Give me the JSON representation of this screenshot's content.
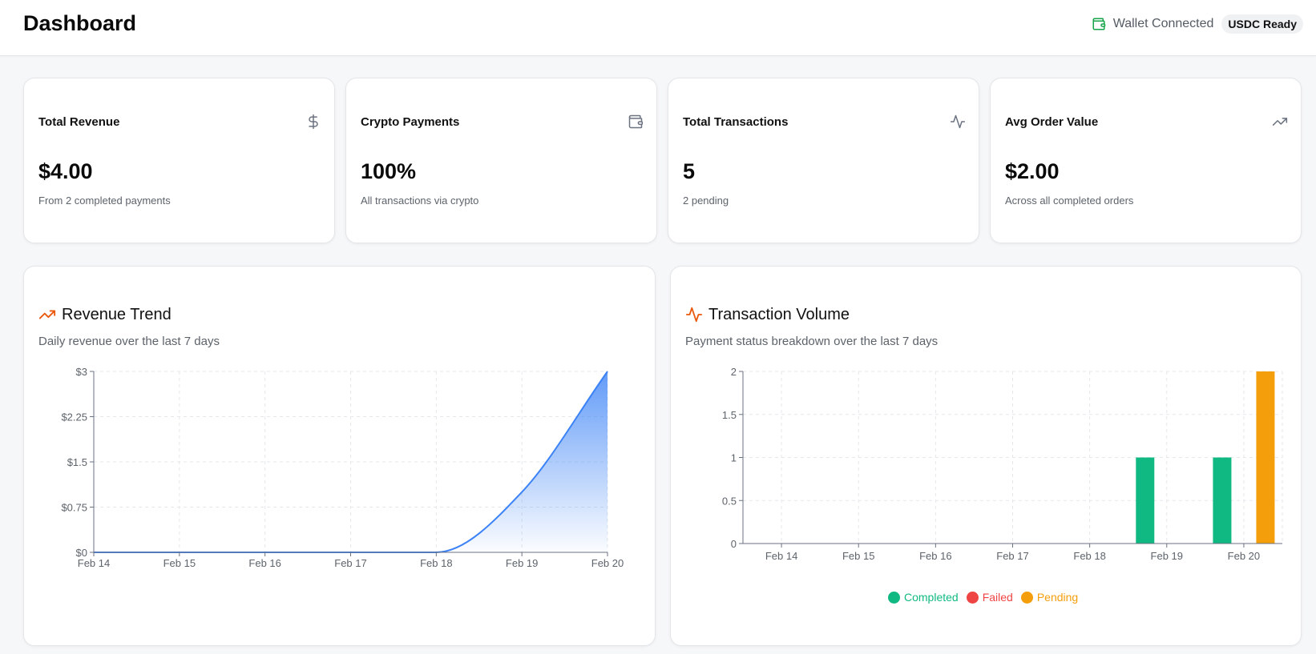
{
  "header": {
    "title": "Dashboard",
    "wallet_status": "Wallet Connected",
    "badge": "USDC Ready",
    "wallet_icon_color": "#16a34a"
  },
  "stats": [
    {
      "title": "Total Revenue",
      "value": "$4.00",
      "sub": "From 2 completed payments",
      "icon": "dollar-icon"
    },
    {
      "title": "Crypto Payments",
      "value": "100%",
      "sub": "All transactions via crypto",
      "icon": "wallet-icon"
    },
    {
      "title": "Total Transactions",
      "value": "5",
      "sub": "2 pending",
      "icon": "activity-icon"
    },
    {
      "title": "Avg Order Value",
      "value": "$2.00",
      "sub": "Across all completed orders",
      "icon": "trending-up-icon"
    }
  ],
  "revenue": {
    "title": "Revenue Trend",
    "subtitle": "Daily revenue over the last 7 days",
    "icon": "trending-up-icon",
    "accent": "#ea580c"
  },
  "volume": {
    "title": "Transaction Volume",
    "subtitle": "Payment status breakdown over the last 7 days",
    "icon": "activity-icon",
    "accent": "#ea580c"
  },
  "chart_data": [
    {
      "type": "area",
      "x": [
        "Feb 14",
        "Feb 15",
        "Feb 16",
        "Feb 17",
        "Feb 18",
        "Feb 19",
        "Feb 20"
      ],
      "series": [
        {
          "values": [
            0,
            0,
            0,
            0,
            0,
            1,
            3
          ]
        }
      ],
      "y_ticks": [
        "$0",
        "$0.75",
        "$1.5",
        "$2.25",
        "$3"
      ],
      "ylim": [
        0,
        3
      ],
      "grid": true,
      "color": "#3b82f6"
    },
    {
      "type": "bar",
      "categories": [
        "Feb 14",
        "Feb 15",
        "Feb 16",
        "Feb 17",
        "Feb 18",
        "Feb 19",
        "Feb 20"
      ],
      "series": [
        {
          "name": "Completed",
          "values": [
            0,
            0,
            0,
            0,
            0,
            1,
            1
          ],
          "color": "#10b981"
        },
        {
          "name": "Failed",
          "values": [
            0,
            0,
            0,
            0,
            0,
            0,
            0
          ],
          "color": "#ef4444"
        },
        {
          "name": "Pending",
          "values": [
            0,
            0,
            0,
            0,
            0,
            0,
            2
          ],
          "color": "#f59e0b"
        }
      ],
      "y_ticks": [
        "0",
        "0.5",
        "1",
        "1.5",
        "2"
      ],
      "ylim": [
        0,
        2
      ],
      "grid": true,
      "legend": "bottom"
    }
  ]
}
